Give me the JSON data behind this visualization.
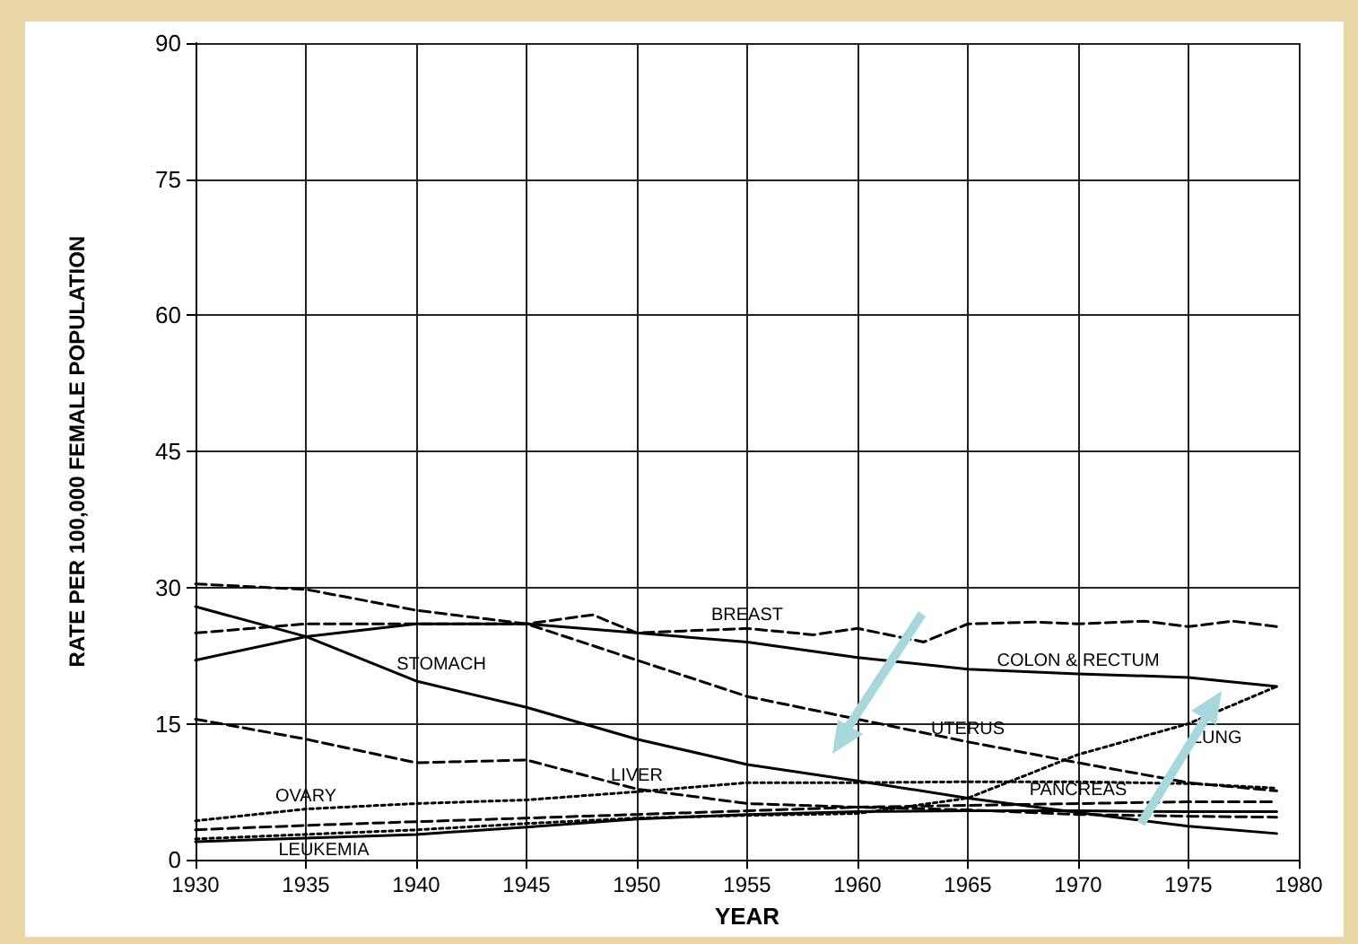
{
  "chart_data": {
    "type": "line",
    "xlabel": "YEAR",
    "ylabel": "RATE PER 100,000 FEMALE POPULATION",
    "x": [
      1930,
      1935,
      1940,
      1945,
      1950,
      1955,
      1960,
      1965,
      1970,
      1975,
      1979
    ],
    "xlim": [
      1930,
      1980
    ],
    "xticks": [
      1930,
      1935,
      1940,
      1945,
      1950,
      1955,
      1960,
      1965,
      1970,
      1975,
      1980
    ],
    "ylim": [
      0,
      90
    ],
    "yticks": [
      0,
      15,
      30,
      45,
      60,
      75,
      90
    ],
    "grid": true,
    "legend": false,
    "marker": "none",
    "series": [
      {
        "name": "BREAST",
        "color": "#000000",
        "line_style": "dashed",
        "x": [
          1930,
          1935,
          1940,
          1945,
          1948,
          1950,
          1955,
          1958,
          1960,
          1963,
          1965,
          1968,
          1970,
          1973,
          1975,
          1977,
          1979
        ],
        "values": [
          25,
          26,
          26,
          26,
          27,
          25,
          25.5,
          24.8,
          25.5,
          24,
          26,
          26.2,
          26,
          26.3,
          25.7,
          26.3,
          25.7
        ]
      },
      {
        "name": "COLON & RECTUM",
        "color": "#000000",
        "line_style": "solid",
        "values": [
          22,
          24.6,
          26,
          26,
          25,
          24,
          22.3,
          21,
          20.5,
          20.1,
          19.1
        ]
      },
      {
        "name": "UTERUS",
        "color": "#000000",
        "line_style": "dashed",
        "values": [
          30.4,
          29.8,
          27.5,
          26,
          22,
          18,
          15.5,
          13,
          10.7,
          8.5,
          7.6
        ]
      },
      {
        "name": "STOMACH",
        "color": "#000000",
        "line_style": "solid",
        "values": [
          27.9,
          24.6,
          19.7,
          16.8,
          13.3,
          10.5,
          8.7,
          6.8,
          5.2,
          3.7,
          2.9
        ]
      },
      {
        "name": "LIVER",
        "color": "#000000",
        "line_style": "dashed",
        "values": [
          15.5,
          13.3,
          10.7,
          11,
          7.8,
          6.2,
          5.8,
          5.5,
          5,
          4.8,
          4.7
        ]
      },
      {
        "name": "OVARY",
        "color": "#000000",
        "line_style": "dotted",
        "values": [
          4.3,
          5.6,
          6.2,
          6.6,
          7.5,
          8.5,
          8.5,
          8.6,
          8.6,
          8.4,
          7.9
        ]
      },
      {
        "name": "PANCREAS",
        "color": "#000000",
        "line_style": "dashed",
        "values": [
          3.3,
          3.8,
          4.2,
          4.6,
          5,
          5.4,
          5.8,
          6,
          6.2,
          6.4,
          6.4
        ]
      },
      {
        "name": "LEUKEMIA",
        "color": "#000000",
        "line_style": "solid",
        "values": [
          2,
          2.4,
          2.8,
          3.6,
          4.5,
          5,
          5.3,
          5.4,
          5.4,
          5.3,
          5.3
        ]
      },
      {
        "name": "LUNG",
        "color": "#000000",
        "line_style": "dotted",
        "values": [
          2.3,
          2.8,
          3.3,
          4,
          4.6,
          4.9,
          5.1,
          6.8,
          11.6,
          15,
          19.1
        ]
      }
    ]
  }
}
